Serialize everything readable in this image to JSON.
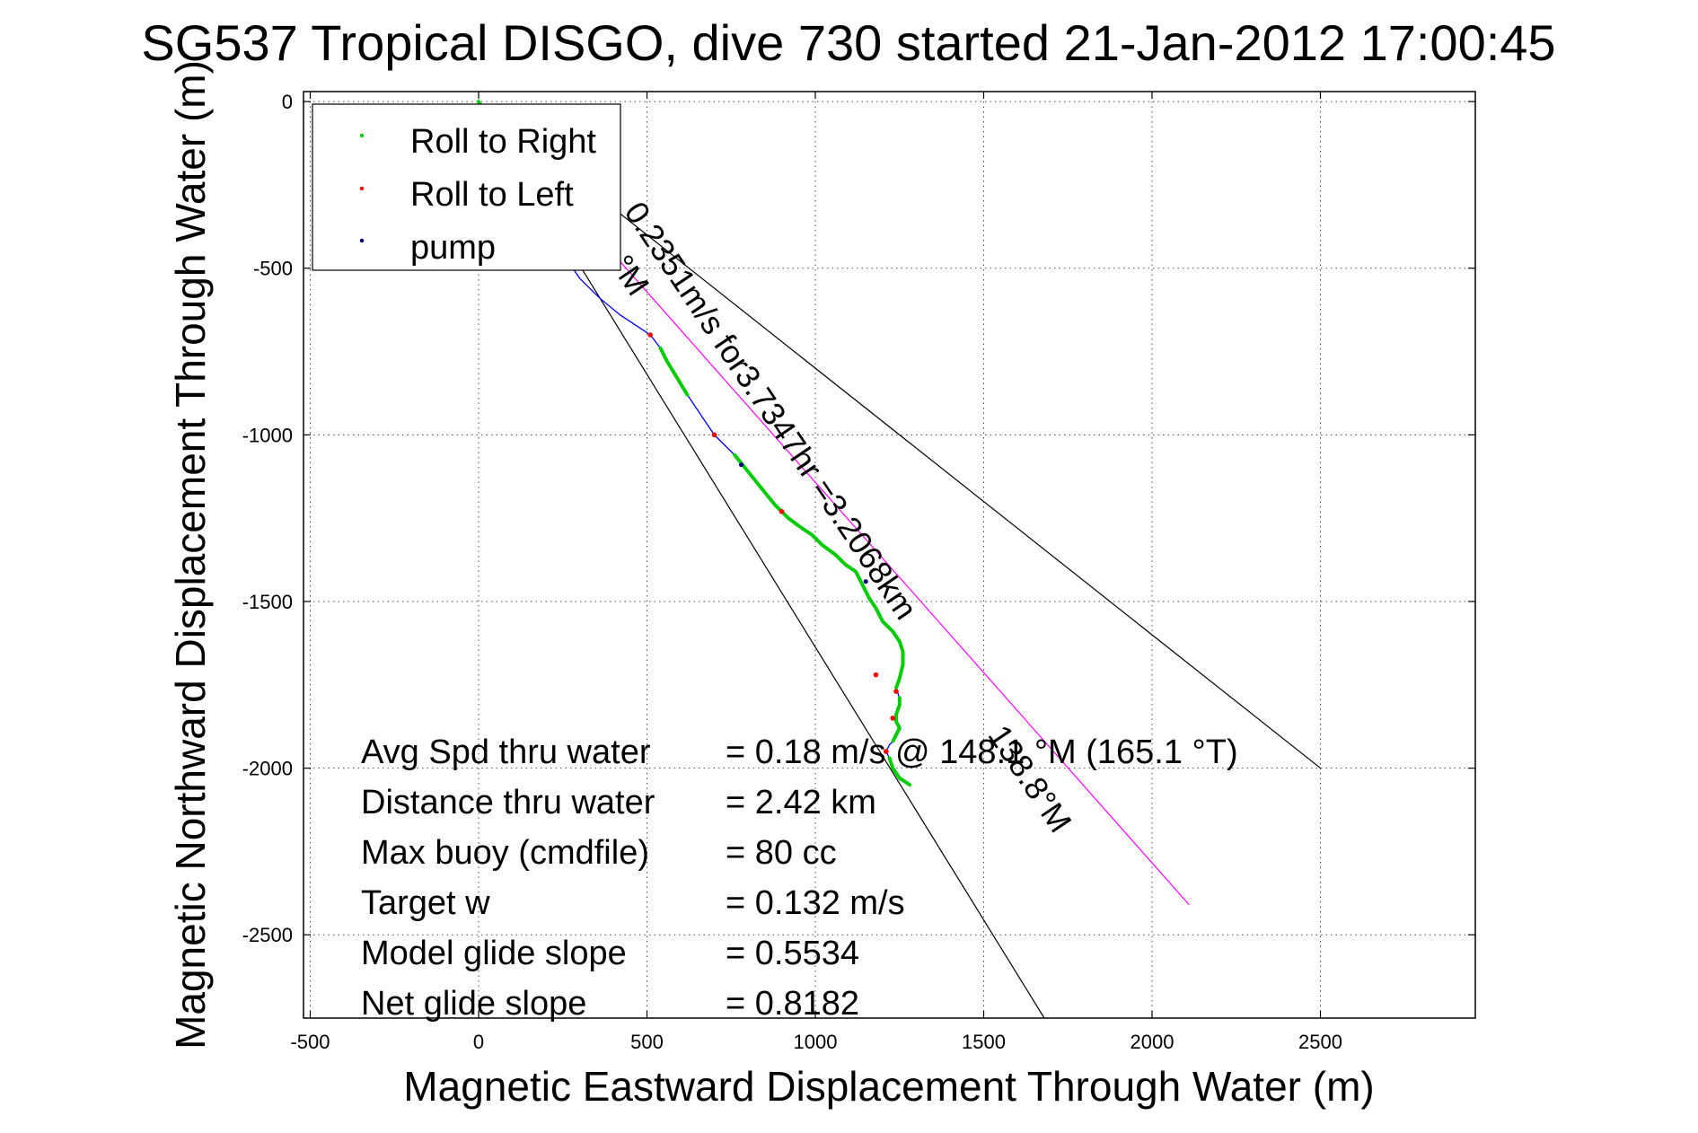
{
  "chart_data": {
    "type": "scatter",
    "title": "SG537 Tropical DISGO, dive 730 started 21-Jan-2012 17:00:45",
    "xlabel": "Magnetic Eastward Displacement Through Water (m)",
    "ylabel": "Magnetic Northward Displacement Through Water (m)",
    "xlim": [
      -520,
      2960
    ],
    "ylim": [
      -2750,
      30
    ],
    "xticks": [
      -500,
      0,
      500,
      1000,
      1500,
      2000,
      2500
    ],
    "yticks": [
      0,
      -500,
      -1000,
      -1500,
      -2000,
      -2500
    ],
    "grid": true,
    "legend_position": "top-left",
    "legend": [
      {
        "label": "Roll to Right",
        "color": "#00cc00"
      },
      {
        "label": "Roll to Left",
        "color": "#ff0000"
      },
      {
        "label": "pump",
        "color": "#000080"
      }
    ],
    "track_line_color": "#0000ff",
    "track_x": [
      0,
      20,
      40,
      70,
      100,
      140,
      180,
      220,
      260,
      300,
      360,
      420,
      480,
      510,
      540,
      560,
      590,
      620,
      660,
      700,
      760,
      800,
      840,
      880,
      920,
      960,
      990,
      1020,
      1060,
      1090,
      1120,
      1140,
      1160,
      1180,
      1200,
      1230,
      1250,
      1260,
      1260,
      1250,
      1240,
      1250,
      1250,
      1240,
      1240,
      1250,
      1240,
      1230,
      1220,
      1210,
      1220,
      1230,
      1250,
      1280
    ],
    "track_y": [
      0,
      -40,
      -100,
      -170,
      -230,
      -290,
      -350,
      -410,
      -470,
      -530,
      -590,
      -640,
      -680,
      -700,
      -740,
      -780,
      -830,
      -880,
      -940,
      -1000,
      -1060,
      -1110,
      -1160,
      -1210,
      -1250,
      -1280,
      -1300,
      -1330,
      -1360,
      -1390,
      -1410,
      -1450,
      -1490,
      -1520,
      -1560,
      -1590,
      -1620,
      -1650,
      -1690,
      -1730,
      -1760,
      -1790,
      -1810,
      -1840,
      -1860,
      -1880,
      -1900,
      -1920,
      -1930,
      -1950,
      -1970,
      -2000,
      -2030,
      -2050
    ],
    "roll_right_segments": [
      {
        "x": [
          0,
          20,
          40
        ],
        "y": [
          0,
          -40,
          -100
        ]
      },
      {
        "x": [
          540,
          560,
          590,
          620
        ],
        "y": [
          -740,
          -780,
          -830,
          -880
        ]
      },
      {
        "x": [
          760,
          800,
          840,
          880,
          920,
          960,
          990,
          1020,
          1060,
          1090,
          1120,
          1140,
          1160,
          1180,
          1200,
          1230,
          1250,
          1260,
          1260,
          1250,
          1240
        ],
        "y": [
          -1060,
          -1110,
          -1160,
          -1210,
          -1250,
          -1280,
          -1300,
          -1330,
          -1360,
          -1390,
          -1410,
          -1450,
          -1490,
          -1520,
          -1560,
          -1590,
          -1620,
          -1650,
          -1690,
          -1730,
          -1760
        ]
      },
      {
        "x": [
          1250,
          1250,
          1240,
          1240,
          1250,
          1240,
          1230
        ],
        "y": [
          -1790,
          -1810,
          -1840,
          -1860,
          -1880,
          -1900,
          -1920
        ]
      },
      {
        "x": [
          1220,
          1230,
          1250,
          1280
        ],
        "y": [
          -1970,
          -2000,
          -2030,
          -2050
        ]
      }
    ],
    "roll_left_points": [
      {
        "x": 510,
        "y": -700
      },
      {
        "x": 700,
        "y": -1000
      },
      {
        "x": 900,
        "y": -1230
      },
      {
        "x": 1180,
        "y": -1720
      },
      {
        "x": 1240,
        "y": -1770
      },
      {
        "x": 1230,
        "y": -1850
      },
      {
        "x": 1210,
        "y": -1950
      }
    ],
    "pump_points": [
      {
        "x": 780,
        "y": -1090
      },
      {
        "x": 1150,
        "y": -1440
      }
    ],
    "guide_lines": [
      {
        "from": [
          0,
          0
        ],
        "to": [
          2500,
          -2000
        ],
        "color": "#000000"
      },
      {
        "from": [
          0,
          0
        ],
        "to": [
          1680,
          -2750
        ],
        "color": "#000000"
      },
      {
        "from": [
          0,
          0
        ],
        "to": [
          2110,
          -2410
        ],
        "color": "#ff00ff"
      }
    ],
    "annotations": [
      {
        "text": "0.2351m/s for3.7347hr =3.2068km",
        "at": [
          430,
          -330
        ],
        "angle_deg": 56
      },
      {
        "text": "138.8°M",
        "at": [
          1510,
          -1900
        ],
        "angle_deg": 56
      },
      {
        "text": "°M",
        "at": [
          390,
          -490
        ],
        "angle_deg": 56
      }
    ],
    "stats": [
      {
        "label": "Avg Spd thru water",
        "value": "=  0.18 m/s @ 148.1 °M (165.1 °T)"
      },
      {
        "label": "Distance thru water",
        "value": "=  2.42 km"
      },
      {
        "label": "Max buoy (cmdfile)",
        "value": "= 80 cc"
      },
      {
        "label": "Target w",
        "value": "= 0.132 m/s"
      },
      {
        "label": "Model glide slope",
        "value": "= 0.5534"
      },
      {
        "label": "Net glide slope",
        "value": "= 0.8182"
      }
    ]
  }
}
